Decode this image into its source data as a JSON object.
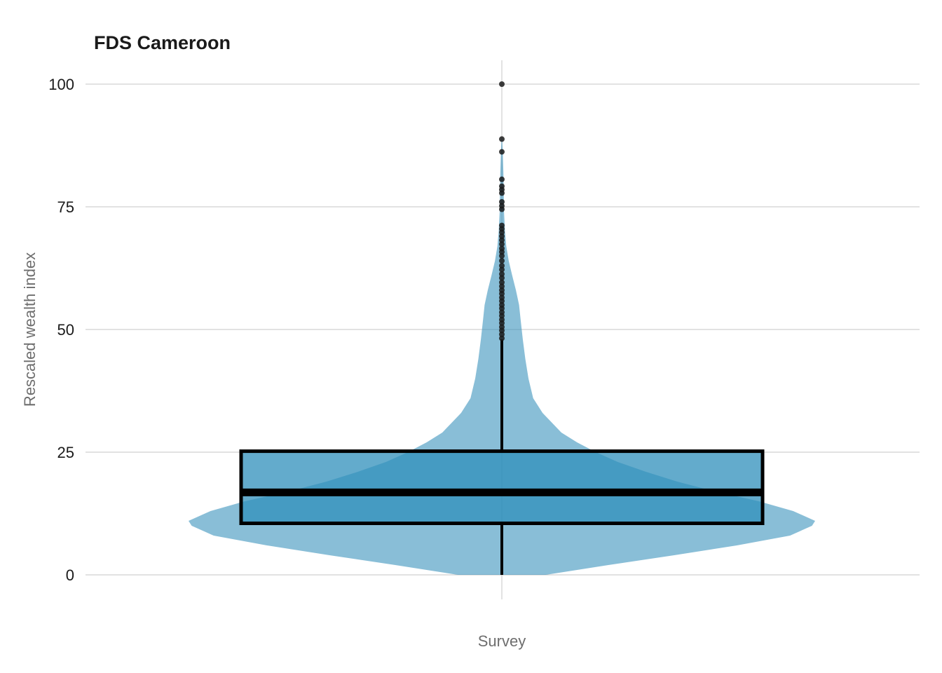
{
  "chart_data": {
    "type": "violin",
    "title": "FDS Cameroon",
    "xlabel": "",
    "ylabel": "Rescaled wealth index",
    "categories": [
      "Survey"
    ],
    "ylim": [
      0,
      100
    ],
    "yticks": [
      0,
      25,
      50,
      75,
      100
    ],
    "grid": true,
    "legend": "none",
    "colors": {
      "violin": "#3a93bd",
      "box": "#2f8fbb",
      "outline": "#000000",
      "grid": "#c4c4c4",
      "outlier": "#1a1a1a"
    },
    "box": {
      "min": 0,
      "q1": 10.5,
      "median": 16.8,
      "q3": 25.2,
      "whisker_high": 48
    },
    "density_profile": [
      {
        "y": 0,
        "width": 0.14
      },
      {
        "y": 2,
        "width": 0.34
      },
      {
        "y": 4,
        "width": 0.55
      },
      {
        "y": 6,
        "width": 0.75
      },
      {
        "y": 8,
        "width": 0.92
      },
      {
        "y": 10,
        "width": 0.99
      },
      {
        "y": 11,
        "width": 1.0
      },
      {
        "y": 13,
        "width": 0.93
      },
      {
        "y": 15,
        "width": 0.82
      },
      {
        "y": 17,
        "width": 0.68
      },
      {
        "y": 19,
        "width": 0.56
      },
      {
        "y": 21,
        "width": 0.46
      },
      {
        "y": 23,
        "width": 0.37
      },
      {
        "y": 25,
        "width": 0.3
      },
      {
        "y": 27,
        "width": 0.24
      },
      {
        "y": 29,
        "width": 0.19
      },
      {
        "y": 31,
        "width": 0.16
      },
      {
        "y": 33,
        "width": 0.13
      },
      {
        "y": 36,
        "width": 0.1
      },
      {
        "y": 40,
        "width": 0.085
      },
      {
        "y": 44,
        "width": 0.075
      },
      {
        "y": 48,
        "width": 0.067
      },
      {
        "y": 52,
        "width": 0.06
      },
      {
        "y": 55,
        "width": 0.055
      },
      {
        "y": 58,
        "width": 0.045
      },
      {
        "y": 61,
        "width": 0.033
      },
      {
        "y": 64,
        "width": 0.022
      },
      {
        "y": 67,
        "width": 0.014
      },
      {
        "y": 70,
        "width": 0.01
      },
      {
        "y": 74,
        "width": 0.007
      },
      {
        "y": 78,
        "width": 0.006
      },
      {
        "y": 82,
        "width": 0.005
      },
      {
        "y": 86,
        "width": 0.003
      },
      {
        "y": 89,
        "width": 0.001
      }
    ],
    "outliers": [
      48.2,
      49.0,
      49.8,
      50.5,
      51.3,
      52.0,
      52.8,
      53.5,
      54.3,
      55.0,
      55.8,
      56.5,
      57.3,
      58.0,
      58.8,
      59.6,
      60.5,
      61.3,
      62.2,
      63.0,
      64.0,
      65.0,
      65.8,
      66.5,
      67.4,
      68.2,
      69.0,
      69.8,
      70.5,
      71.2,
      74.5,
      75.2,
      76.0,
      77.8,
      78.5,
      79.2,
      80.6,
      86.2,
      88.8,
      100.0
    ]
  }
}
